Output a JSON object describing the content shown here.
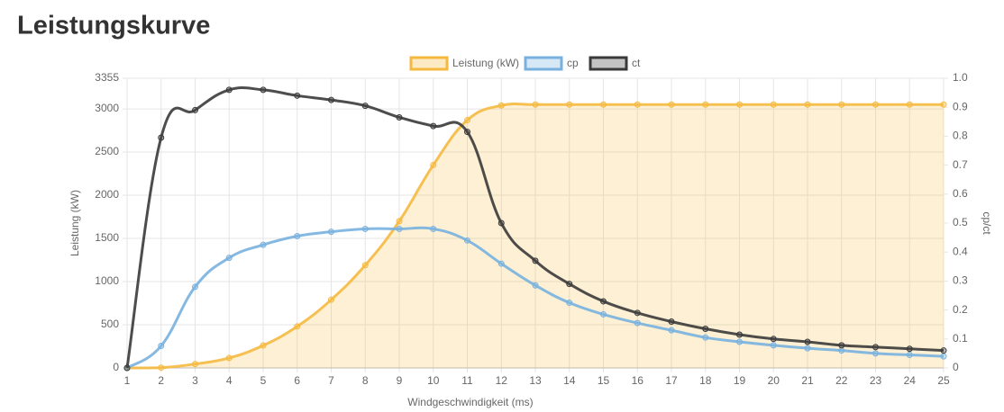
{
  "title": "Leistungskurve",
  "chart_data": {
    "type": "line",
    "x_label": "Windgeschwindigkeit (ms)",
    "y_label": "Leistung (kW)",
    "y2_label": "cp/ct",
    "legend": "top",
    "grid": true,
    "x": [
      1,
      2,
      3,
      4,
      5,
      6,
      7,
      8,
      9,
      10,
      11,
      12,
      13,
      14,
      15,
      16,
      17,
      18,
      19,
      20,
      21,
      22,
      23,
      24,
      25
    ],
    "xlim": [
      1,
      25
    ],
    "xticks": [
      1,
      2,
      3,
      4,
      5,
      6,
      7,
      8,
      9,
      10,
      11,
      12,
      13,
      14,
      15,
      16,
      17,
      18,
      19,
      20,
      21,
      22,
      23,
      24,
      25
    ],
    "ylim": [
      0,
      3355
    ],
    "yticks": [
      0,
      500,
      1000,
      1500,
      2000,
      2500,
      3000,
      3355
    ],
    "y2lim": [
      0,
      1
    ],
    "y2ticks": [
      0,
      0.1,
      0.2,
      0.3,
      0.4,
      0.5,
      0.6,
      0.7,
      0.8,
      0.9,
      {
        "value": 1,
        "label": "1.0"
      }
    ],
    "series": [
      {
        "name": "Leistung (kW)",
        "color": "#f5b93f",
        "fill": true,
        "values": [
          0,
          3,
          45,
          115,
          260,
          480,
          790,
          1190,
          1700,
          2350,
          2870,
          3040,
          3050,
          3050,
          3050,
          3050,
          3050,
          3050,
          3050,
          3050,
          3050,
          3050,
          3050,
          3050,
          3050
        ]
      },
      {
        "name": "cp",
        "color": "#78b1df",
        "axis": "y2",
        "fill": false,
        "values": [
          0,
          0.076,
          0.28,
          0.38,
          0.425,
          0.455,
          0.47,
          0.48,
          0.48,
          0.48,
          0.44,
          0.36,
          0.285,
          0.225,
          0.185,
          0.155,
          0.13,
          0.105,
          0.09,
          0.078,
          0.068,
          0.06,
          0.05,
          0.045,
          0.04
        ]
      },
      {
        "name": "ct",
        "color": "#3a3a3a",
        "axis": "y2",
        "fill": false,
        "values": [
          0,
          0.795,
          0.89,
          0.96,
          0.96,
          0.94,
          0.925,
          0.905,
          0.865,
          0.835,
          0.815,
          0.5,
          0.37,
          0.29,
          0.23,
          0.19,
          0.16,
          0.135,
          0.115,
          0.1,
          0.09,
          0.078,
          0.072,
          0.066,
          0.06
        ]
      }
    ]
  }
}
